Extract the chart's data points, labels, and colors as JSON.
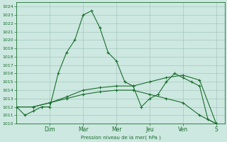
{
  "bg_color": "#cde8e0",
  "grid_color": "#9dbfb5",
  "line_color": "#1a6e2e",
  "marker_color": "#1a6e2e",
  "xlabel": "Pression niveau de la mer( hPa )",
  "ylim": [
    1010,
    1024.5
  ],
  "yticks": [
    1010,
    1011,
    1012,
    1013,
    1014,
    1015,
    1016,
    1017,
    1018,
    1019,
    1020,
    1021,
    1022,
    1023,
    1024
  ],
  "day_labels": [
    "Dim",
    "Mar",
    "Mer",
    "Jeu",
    "Ven",
    "S"
  ],
  "day_positions": [
    2.0,
    4.0,
    6.0,
    8.0,
    10.0,
    12.0
  ],
  "xlim": [
    0,
    12.5
  ],
  "series1_x": [
    0.0,
    0.5,
    1.0,
    1.5,
    2.0,
    2.5,
    3.0,
    3.5,
    4.0,
    4.5,
    5.0,
    5.5,
    6.0,
    6.5,
    7.0,
    7.5,
    8.0,
    8.5,
    9.0,
    9.5,
    10.0,
    10.5,
    11.0,
    11.5,
    12.0
  ],
  "series1_y": [
    1012.0,
    1011.0,
    1011.5,
    1012.0,
    1012.0,
    1016.0,
    1018.5,
    1020.0,
    1023.0,
    1023.5,
    1021.5,
    1018.5,
    1017.5,
    1015.0,
    1014.5,
    1012.0,
    1013.0,
    1013.5,
    1015.0,
    1016.0,
    1015.5,
    1015.0,
    1014.5,
    1010.5,
    1010.0
  ],
  "series2_x": [
    0.0,
    1.0,
    2.0,
    3.0,
    4.0,
    5.0,
    6.0,
    7.0,
    8.0,
    9.0,
    10.0,
    11.0,
    12.0
  ],
  "series2_y": [
    1012.0,
    1012.0,
    1012.5,
    1013.0,
    1013.5,
    1013.8,
    1014.0,
    1014.0,
    1013.5,
    1013.0,
    1012.5,
    1011.0,
    1010.0
  ],
  "series3_x": [
    0.0,
    1.0,
    2.0,
    3.0,
    4.0,
    5.0,
    6.0,
    7.0,
    8.0,
    9.0,
    10.0,
    11.0,
    12.0
  ],
  "series3_y": [
    1012.0,
    1012.0,
    1012.5,
    1013.2,
    1014.0,
    1014.3,
    1014.5,
    1014.5,
    1015.0,
    1015.5,
    1015.8,
    1015.2,
    1010.0
  ],
  "figwidth": 3.2,
  "figheight": 2.0,
  "dpi": 100
}
